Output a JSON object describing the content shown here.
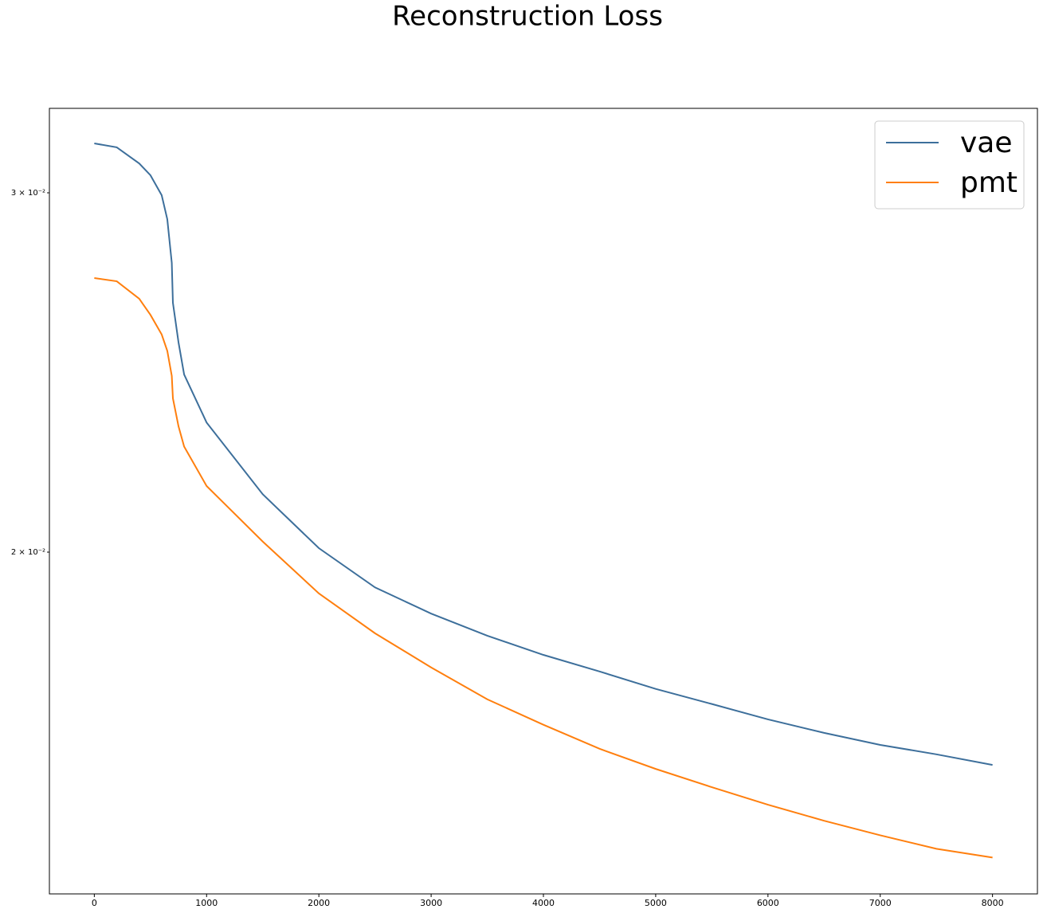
{
  "chart_data": {
    "type": "line",
    "title": "Reconstruction Loss",
    "x": [
      0,
      200,
      400,
      500,
      600,
      650,
      690,
      700,
      750,
      800,
      1000,
      1500,
      2000,
      2500,
      3000,
      3500,
      4000,
      4500,
      5000,
      5500,
      6000,
      6500,
      7000,
      7500,
      8000
    ],
    "series": [
      {
        "name": "vae",
        "color": "#3d6f9b",
        "values": [
          0.03172,
          0.03158,
          0.03101,
          0.0306,
          0.02992,
          0.02912,
          0.02772,
          0.0265,
          0.02534,
          0.02444,
          0.02315,
          0.02135,
          0.02009,
          0.01922,
          0.01866,
          0.0182,
          0.01781,
          0.01748,
          0.01714,
          0.01685,
          0.01656,
          0.01631,
          0.01609,
          0.01592,
          0.01573
        ]
      },
      {
        "name": "pmt",
        "color": "#ff7f0e",
        "values": [
          0.02725,
          0.02715,
          0.02662,
          0.02614,
          0.02557,
          0.0251,
          0.0244,
          0.02379,
          0.02305,
          0.02253,
          0.02155,
          0.02024,
          0.01909,
          0.01825,
          0.01756,
          0.01694,
          0.01646,
          0.01602,
          0.01566,
          0.01534,
          0.01504,
          0.01477,
          0.01453,
          0.01431,
          0.01417
        ]
      }
    ],
    "xlim": [
      -400,
      8400
    ],
    "xticks": [
      0,
      1000,
      2000,
      3000,
      4000,
      5000,
      6000,
      7000,
      8000
    ],
    "ylim": [
      0.0136,
      0.033
    ],
    "y_scale": "log",
    "yticks": [
      {
        "value": 0.02,
        "label": "2 × 10⁻²"
      },
      {
        "value": 0.03,
        "label": "3 × 10⁻²"
      }
    ],
    "legend": "upper right"
  }
}
